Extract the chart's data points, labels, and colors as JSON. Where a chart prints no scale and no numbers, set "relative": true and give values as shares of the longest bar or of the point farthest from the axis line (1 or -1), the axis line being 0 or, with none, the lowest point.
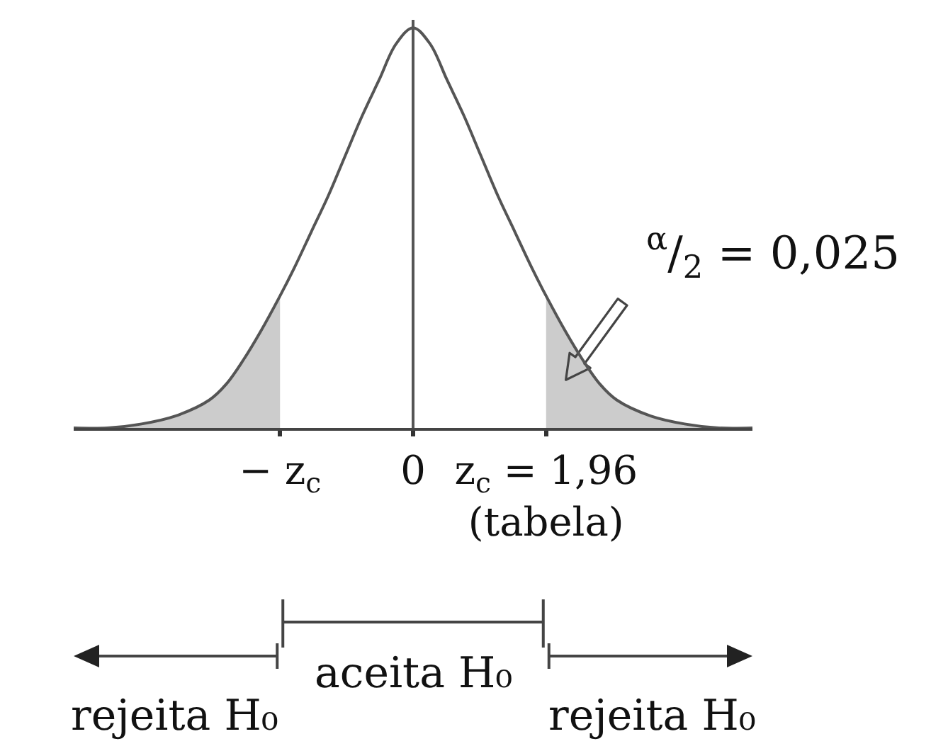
{
  "chart_data": {
    "type": "line",
    "relative": true,
    "xlim": [
      -5,
      5
    ],
    "xticks": [
      {
        "value": -1.96,
        "label": "− z$_{c}$"
      },
      0,
      {
        "value": 1.96,
        "label": "z$_{c}$ = 1,96\n(tabela)"
      }
    ],
    "series": [
      {
        "type": "area",
        "color": "#cccccc",
        "x": [
          -5,
          -4.5,
          -4,
          -3.5,
          -3,
          -2.75,
          -2.5,
          -2.25,
          -1.96
        ],
        "values": [
          0,
          0,
          0.01,
          0.03,
          0.07,
          0.11,
          0.17,
          0.24,
          0.33
        ]
      },
      {
        "type": "area",
        "color": "#cccccc",
        "x": [
          1.96,
          2.25,
          2.5,
          2.75,
          3,
          3.5,
          4,
          4.5,
          5
        ],
        "values": [
          0.33,
          0.24,
          0.17,
          0.11,
          0.07,
          0.03,
          0.01,
          0,
          0
        ]
      },
      {
        "color": "#555555",
        "x": [
          -5,
          -4.5,
          -4,
          -3.5,
          -3,
          -2.75,
          -2.5,
          -2.25,
          -1.96,
          -1.75,
          -1.5,
          -1.25,
          -1,
          -0.75,
          -0.5,
          -0.25,
          0,
          0.25,
          0.5,
          0.75,
          1,
          1.25,
          1.5,
          1.75,
          1.96,
          2.25,
          2.5,
          2.75,
          3,
          3.5,
          4,
          4.5,
          5
        ],
        "values": [
          0,
          0,
          0.01,
          0.03,
          0.07,
          0.11,
          0.17,
          0.24,
          0.33,
          0.4,
          0.49,
          0.58,
          0.68,
          0.78,
          0.87,
          0.96,
          1,
          0.96,
          0.87,
          0.78,
          0.68,
          0.58,
          0.49,
          0.4,
          0.33,
          0.24,
          0.17,
          0.11,
          0.07,
          0.03,
          0.01,
          0,
          0
        ]
      }
    ],
    "ref_lines": [
      {
        "axis": "x",
        "value": 0,
        "color": "#555555"
      }
    ],
    "annotations": [
      "$^{α}$/$_{2}$ = 0,025",
      "rejeita H₀",
      "aceita H₀",
      "rejeita H₀"
    ]
  }
}
